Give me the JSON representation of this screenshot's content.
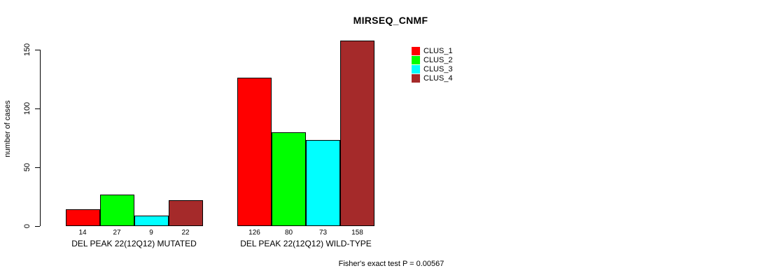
{
  "chart_data": {
    "type": "bar",
    "title": "MIRSEQ_CNMF",
    "ylabel": "number of cases",
    "xlabel": "",
    "yticks": [
      0,
      50,
      100,
      150
    ],
    "ylim": [
      0,
      150
    ],
    "grid": false,
    "legend_position": "top-right-of-plot",
    "categories": [
      "DEL PEAK 22(12Q12) MUTATED",
      "DEL PEAK 22(12Q12) WILD-TYPE"
    ],
    "series": [
      {
        "name": "CLUS_1",
        "color": "#FF0000",
        "values": [
          14,
          126
        ]
      },
      {
        "name": "CLUS_2",
        "color": "#00FF00",
        "values": [
          27,
          80
        ]
      },
      {
        "name": "CLUS_3",
        "color": "#00FFFF",
        "values": [
          9,
          73
        ]
      },
      {
        "name": "CLUS_4",
        "color": "#A52A2A",
        "values": [
          22,
          158
        ]
      }
    ],
    "bar_value_labels_shown": true,
    "annotation": "Fisher's exact test P = 0.00567",
    "background_color": "#FFFFFF",
    "axis_color": "#000000"
  }
}
